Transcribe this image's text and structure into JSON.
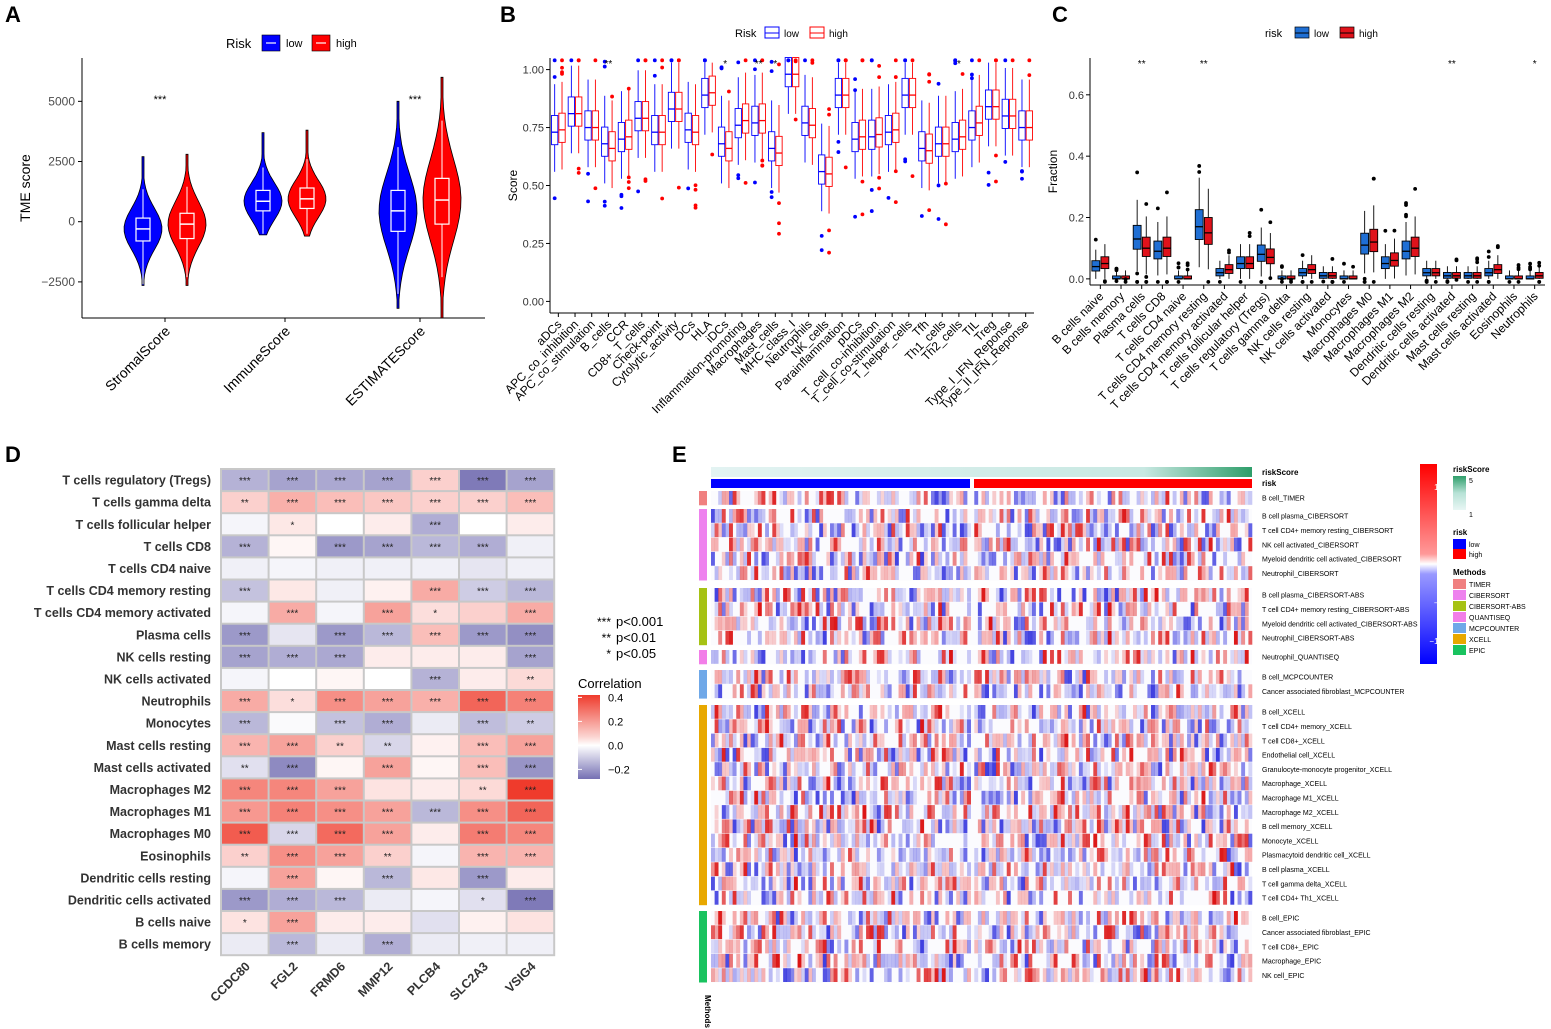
{
  "panels": {
    "A": "A",
    "B": "B",
    "C": "C",
    "D": "D",
    "E": "E"
  },
  "chart_data": [
    {
      "id": "A",
      "type": "violin",
      "title": "",
      "ylabel": "TME score",
      "xlabel": "",
      "ylim": [
        -4000,
        6800
      ],
      "yticks": [
        -2500,
        0,
        2500,
        5000
      ],
      "ytick_labels": [
        "−2500",
        "0",
        "2500",
        "5000"
      ],
      "legend_title": "Risk",
      "legend": [
        "low",
        "high"
      ],
      "colors": {
        "low": "#0000ff",
        "high": "#ff0000"
      },
      "categories": [
        "StromalScore",
        "ImmuneScore",
        "ESTIMATEScore"
      ],
      "series": [
        {
          "name": "low",
          "stats": [
            {
              "min": -2600,
              "q1": -800,
              "median": -300,
              "q3": 150,
              "max": 1350,
              "vmin": -2650,
              "vmax": 2700
            },
            {
              "min": -500,
              "q1": 450,
              "median": 850,
              "q3": 1300,
              "max": 2250,
              "vmin": -550,
              "vmax": 3700
            },
            {
              "min": -3000,
              "q1": -400,
              "median": 450,
              "q3": 1300,
              "max": 3100,
              "vmin": -3600,
              "vmax": 5000
            }
          ]
        },
        {
          "name": "high",
          "stats": [
            {
              "min": -2300,
              "q1": -700,
              "median": -100,
              "q3": 350,
              "max": 1450,
              "vmin": -2650,
              "vmax": 2800
            },
            {
              "min": -500,
              "q1": 550,
              "median": 950,
              "q3": 1400,
              "max": 2600,
              "vmin": -600,
              "vmax": 3800
            },
            {
              "min": -2300,
              "q1": -100,
              "median": 900,
              "q3": 1800,
              "max": 4200,
              "vmin": -4000,
              "vmax": 6000
            }
          ]
        }
      ],
      "significance": [
        "***",
        "",
        "***"
      ]
    },
    {
      "id": "B",
      "type": "boxplot",
      "ylabel": "Score",
      "ylim": [
        -0.05,
        1.05
      ],
      "yticks": [
        0.0,
        0.25,
        0.5,
        0.75,
        1.0
      ],
      "ytick_labels": [
        "0.00",
        "0.25",
        "0.50",
        "0.75",
        "1.00"
      ],
      "legend_title": "Risk",
      "legend": [
        "low",
        "high"
      ],
      "colors": {
        "low": "#0000ff",
        "high": "#ff0000"
      },
      "categories": [
        "aDCs",
        "APC_co_inhibition",
        "APC_co_stimulation",
        "B_cells",
        "CCR",
        "CD8+_T_cells",
        "Check-point",
        "Cytolytic_activity",
        "DCs",
        "HLA",
        "iDCs",
        "Inflammation-promoting",
        "Macrophages",
        "Mast_cells",
        "MHC_class_I",
        "Neutrophils",
        "NK_cells",
        "Parainflammation",
        "pDCs",
        "T_cell_co-inhibition",
        "T_cell_co-stimulation",
        "T_helper_cells",
        "Tfh",
        "Th1_cells",
        "Th2_cells",
        "TIL",
        "Treg",
        "Type_I_IFN_Reponse",
        "Type_II_IFN_Reponse"
      ],
      "medians_low": [
        0.73,
        0.81,
        0.75,
        0.68,
        0.7,
        0.79,
        0.73,
        0.83,
        0.74,
        0.89,
        0.68,
        0.76,
        0.77,
        0.66,
        0.98,
        0.77,
        0.56,
        0.89,
        0.7,
        0.71,
        0.73,
        0.89,
        0.66,
        0.68,
        0.7,
        0.75,
        0.84,
        0.8,
        0.75
      ],
      "medians_high": [
        0.74,
        0.81,
        0.75,
        0.66,
        0.71,
        0.79,
        0.73,
        0.83,
        0.73,
        0.9,
        0.66,
        0.78,
        0.78,
        0.64,
        0.98,
        0.76,
        0.55,
        0.89,
        0.71,
        0.72,
        0.74,
        0.89,
        0.65,
        0.68,
        0.71,
        0.77,
        0.84,
        0.8,
        0.75
      ],
      "significance": [
        "",
        "",
        "",
        "**",
        "",
        "",
        "",
        "",
        "",
        "",
        "*",
        "",
        "**",
        "*",
        "",
        "",
        "",
        "",
        "",
        "",
        "",
        "",
        "",
        "",
        "*",
        "",
        "",
        "",
        ""
      ]
    },
    {
      "id": "C",
      "type": "boxplot",
      "ylabel": "Fraction",
      "ylim": [
        -0.02,
        0.72
      ],
      "yticks": [
        0.0,
        0.2,
        0.4,
        0.6
      ],
      "ytick_labels": [
        "0.0",
        "0.2",
        "0.4",
        "0.6"
      ],
      "legend_title": "risk",
      "legend": [
        "low",
        "high"
      ],
      "colors": {
        "low": "#1f6fd4",
        "high": "#e0121b"
      },
      "categories": [
        "B cells naive",
        "B cells memory",
        "Plasma cells",
        "T cells CD8",
        "T cells CD4 naive",
        "T cells CD4 memory resting",
        "T cells CD4 memory activated",
        "T cells follicular helper",
        "T cells regulatory (Tregs)",
        "T cells gamma delta",
        "NK cells resting",
        "NK cells activated",
        "Monocytes",
        "Macrophages M0",
        "Macrophages M1",
        "Macrophages M2",
        "Dendritic cells resting",
        "Dendritic cells activated",
        "Mast cells resting",
        "Mast cells activated",
        "Eosinophils",
        "Neutrophils"
      ],
      "medians_low": [
        0.04,
        0.0,
        0.13,
        0.09,
        0.0,
        0.17,
        0.02,
        0.05,
        0.08,
        0.0,
        0.02,
        0.01,
        0.0,
        0.11,
        0.05,
        0.09,
        0.02,
        0.01,
        0.01,
        0.02,
        0.0,
        0.0
      ],
      "medians_high": [
        0.05,
        0.0,
        0.1,
        0.1,
        0.0,
        0.15,
        0.03,
        0.05,
        0.07,
        0.0,
        0.03,
        0.01,
        0.0,
        0.12,
        0.06,
        0.1,
        0.02,
        0.01,
        0.01,
        0.03,
        0.0,
        0.01
      ],
      "significance": [
        "",
        "",
        "**",
        "",
        "",
        "**",
        "",
        "",
        "",
        "",
        "",
        "",
        "",
        "",
        "",
        "",
        "",
        "**",
        "",
        "",
        "",
        "*"
      ]
    },
    {
      "id": "D",
      "type": "heatmap",
      "rows": [
        "T cells regulatory (Tregs)",
        "T cells gamma delta",
        "T cells follicular helper",
        "T cells CD8",
        "T cells CD4 naive",
        "T cells CD4 memory resting",
        "T cells CD4 memory activated",
        "Plasma cells",
        "NK cells resting",
        "NK cells activated",
        "Neutrophils",
        "Monocytes",
        "Mast cells resting",
        "Mast cells activated",
        "Macrophages M2",
        "Macrophages M1",
        "Macrophages M0",
        "Eosinophils",
        "Dendritic cells resting",
        "Dendritic cells activated",
        "B cells naive",
        "B cells memory"
      ],
      "cols": [
        "CCDC80",
        "FGL2",
        "FRMD6",
        "MMP12",
        "PLCB4",
        "SLC2A3",
        "VSIG4"
      ],
      "values": [
        [
          -0.15,
          -0.18,
          -0.17,
          -0.18,
          0.1,
          -0.26,
          -0.18
        ],
        [
          0.1,
          0.17,
          0.14,
          0.12,
          0.1,
          0.1,
          0.14
        ],
        [
          -0.02,
          0.05,
          0.0,
          0.04,
          -0.16,
          0.0,
          0.04
        ],
        [
          -0.15,
          0.02,
          -0.2,
          -0.18,
          -0.14,
          -0.16,
          -0.03
        ],
        [
          -0.03,
          -0.02,
          -0.03,
          -0.03,
          -0.03,
          -0.05,
          -0.03
        ],
        [
          -0.12,
          0.05,
          -0.03,
          0.03,
          0.18,
          -0.1,
          -0.14
        ],
        [
          -0.02,
          0.18,
          -0.02,
          0.2,
          0.07,
          0.1,
          0.18
        ],
        [
          -0.2,
          -0.05,
          -0.2,
          -0.14,
          0.14,
          -0.2,
          -0.22
        ],
        [
          -0.18,
          -0.16,
          -0.17,
          0.04,
          0.04,
          0.04,
          -0.18
        ],
        [
          -0.02,
          0.0,
          0.02,
          0.0,
          -0.15,
          0.04,
          0.08
        ],
        [
          0.18,
          0.07,
          0.24,
          0.2,
          0.17,
          0.33,
          0.27
        ],
        [
          -0.14,
          -0.01,
          -0.12,
          -0.16,
          -0.04,
          -0.13,
          -0.1
        ],
        [
          0.16,
          0.2,
          0.1,
          -0.08,
          0.03,
          0.14,
          0.2
        ],
        [
          -0.06,
          -0.23,
          0.02,
          0.2,
          0.02,
          0.14,
          -0.21
        ],
        [
          0.26,
          0.26,
          0.2,
          0.06,
          0.04,
          0.08,
          0.42
        ],
        [
          0.22,
          0.27,
          0.24,
          0.2,
          -0.14,
          0.24,
          0.33
        ],
        [
          0.35,
          -0.08,
          0.32,
          0.2,
          0.04,
          0.28,
          0.26
        ],
        [
          0.1,
          0.24,
          0.2,
          0.1,
          -0.02,
          0.16,
          0.16
        ],
        [
          -0.02,
          0.2,
          0.02,
          -0.14,
          0.05,
          -0.2,
          0.04
        ],
        [
          -0.2,
          -0.16,
          -0.14,
          -0.04,
          -0.02,
          -0.06,
          -0.26
        ],
        [
          0.06,
          0.2,
          0.04,
          0.04,
          -0.06,
          0.03,
          0.06
        ],
        [
          -0.04,
          -0.14,
          -0.04,
          -0.16,
          -0.04,
          -0.03,
          -0.03
        ]
      ],
      "stars": [
        [
          "***",
          "***",
          "***",
          "***",
          "***",
          "***",
          "***"
        ],
        [
          "**",
          "***",
          "***",
          "***",
          "***",
          "***",
          "***"
        ],
        [
          "",
          "*",
          "",
          "",
          "***",
          "",
          ""
        ],
        [
          "***",
          "",
          "***",
          "***",
          "***",
          "***",
          ""
        ],
        [
          "",
          "",
          "",
          "",
          "",
          "",
          ""
        ],
        [
          "***",
          "",
          "",
          "",
          "***",
          "***",
          "***"
        ],
        [
          "",
          "***",
          "",
          "***",
          "*",
          "",
          "***"
        ],
        [
          "***",
          "",
          "***",
          "***",
          "***",
          "***",
          "***"
        ],
        [
          "***",
          "***",
          "***",
          "",
          "",
          "",
          "***"
        ],
        [
          "",
          "",
          "",
          "",
          "***",
          "",
          "**"
        ],
        [
          "***",
          "*",
          "***",
          "***",
          "***",
          "***",
          "***"
        ],
        [
          "***",
          "",
          "***",
          "***",
          "",
          "***",
          "**"
        ],
        [
          "***",
          "***",
          "**",
          "**",
          "",
          "***",
          "***"
        ],
        [
          "**",
          "***",
          "",
          "***",
          "",
          "***",
          "***"
        ],
        [
          "***",
          "***",
          "***",
          "",
          "",
          "**",
          "***"
        ],
        [
          "***",
          "***",
          "***",
          "***",
          "***",
          "***",
          "***"
        ],
        [
          "***",
          "***",
          "***",
          "***",
          "",
          "***",
          "***"
        ],
        [
          "**",
          "***",
          "***",
          "**",
          "",
          "***",
          "***"
        ],
        [
          "",
          "***",
          "",
          "***",
          "",
          "***",
          ""
        ],
        [
          "***",
          "***",
          "***",
          "",
          "",
          "*",
          "***"
        ],
        [
          "*",
          "***",
          "",
          "",
          "",
          "",
          ""
        ],
        [
          "",
          "***",
          "",
          "***",
          "",
          "",
          ""
        ]
      ],
      "sig_legend": [
        {
          "sym": "***",
          "label": "p<0.001"
        },
        {
          "sym": "**",
          "label": "p<0.01"
        },
        {
          "sym": "*",
          "label": "p<0.05"
        }
      ],
      "colorbar_title": "Correlation",
      "colorbar_ticks": [
        "0.4",
        "0.2",
        "0.0",
        "−0.2"
      ],
      "colorbar_values": [
        0.4,
        0.2,
        0.0,
        -0.2
      ],
      "color_range": [
        -0.28,
        0.42
      ]
    },
    {
      "id": "E",
      "type": "heatmap",
      "top_annotations": [
        "riskScore",
        "risk"
      ],
      "rows": [
        "B cell_TIMER",
        "B cell plasma_CIBERSORT",
        "T cell CD4+ memory resting_CIBERSORT",
        "NK cell activated_CIBERSORT",
        "Myeloid dendritic cell activated_CIBERSORT",
        "Neutrophil_CIBERSORT",
        "B cell plasma_CIBERSORT-ABS",
        "T cell CD4+ memory resting_CIBERSORT-ABS",
        "Myeloid dendritic cell activated_CIBERSORT-ABS",
        "Neutrophil_CIBERSORT-ABS",
        "Neutrophil_QUANTISEQ",
        "B cell_MCPCOUNTER",
        "Cancer associated fibroblast_MCPCOUNTER",
        "B cell_XCELL",
        "T cell CD4+ memory_XCELL",
        "T cell CD8+_XCELL",
        "Endothelial cell_XCELL",
        "Granulocyte-monocyte progenitor_XCELL",
        "Macrophage_XCELL",
        "Macrophage M1_XCELL",
        "Macrophage M2_XCELL",
        "B cell memory_XCELL",
        "Monocyte_XCELL",
        "Plasmacytoid dendritic cell_XCELL",
        "B cell plasma_XCELL",
        "T cell gamma delta_XCELL",
        "T cell CD4+ Th1_XCELL",
        "B cell_EPIC",
        "Cancer associated fibroblast_EPIC",
        "T cell CD8+_EPIC",
        "Macrophage_EPIC",
        "NK cell_EPIC"
      ],
      "method_label": "Methods",
      "colorbar_ticks": [
        "10",
        "5",
        "0",
        "−5",
        "−10"
      ],
      "colorbar_values": [
        10,
        5,
        0,
        -5,
        -10
      ],
      "legend": {
        "riskScore": {
          "title": "riskScore",
          "ticks": [
            "5",
            "1"
          ]
        },
        "risk": {
          "title": "risk",
          "items": [
            {
              "label": "low",
              "color": "#0000ff"
            },
            {
              "label": "high",
              "color": "#ff0000"
            }
          ]
        },
        "methods": {
          "title": "Methods",
          "items": [
            {
              "label": "TIMER",
              "color": "#f08080"
            },
            {
              "label": "CIBERSORT",
              "color": "#ee82ee"
            },
            {
              "label": "CIBERSORT-ABS",
              "color": "#a6c214"
            },
            {
              "label": "QUANTISEQ",
              "color": "#f27ee8"
            },
            {
              "label": "MCPCOUNTER",
              "color": "#6fa8e8"
            },
            {
              "label": "XCELL",
              "color": "#e8a800"
            },
            {
              "label": "EPIC",
              "color": "#19c35f"
            }
          ]
        }
      }
    }
  ]
}
